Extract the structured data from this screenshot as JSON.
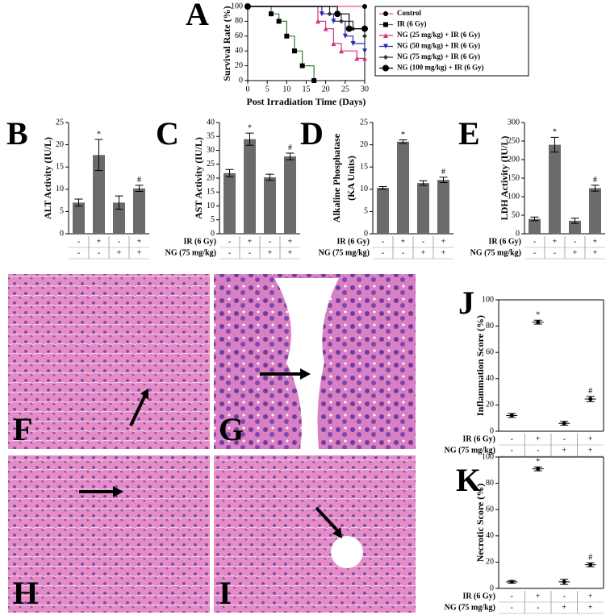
{
  "chart_data": [
    {
      "type": "line",
      "panel_label": "A",
      "xlabel": "Post Irradiation Time (Days)",
      "ylabel": "Survival Rate (%)",
      "xlim": [
        0,
        30
      ],
      "xticks": [
        0,
        5,
        10,
        15,
        20,
        25,
        30
      ],
      "ylim": [
        0,
        100
      ],
      "yticks": [
        0,
        20,
        40,
        60,
        80,
        100
      ],
      "series": [
        {
          "name": "Control",
          "color": "#e0559a",
          "marker": "circle",
          "x": [
            0,
            30
          ],
          "values": [
            100,
            100
          ]
        },
        {
          "name": "IR (6 Gy)",
          "color": "#2e7d32",
          "marker": "square",
          "x": [
            0,
            6,
            8,
            10,
            12,
            14,
            17
          ],
          "values": [
            100,
            90,
            80,
            60,
            40,
            20,
            0
          ]
        },
        {
          "name": "NG (25 mg/kg) + IR (6 Gy)",
          "color": "#d63384",
          "marker": "triangle-up",
          "x": [
            0,
            18,
            20,
            22,
            24,
            28,
            30
          ],
          "values": [
            100,
            80,
            70,
            50,
            40,
            30,
            30
          ]
        },
        {
          "name": "NG (50 mg/kg) + IR (6 Gy)",
          "color": "#2a2ab0",
          "marker": "triangle-down",
          "x": [
            0,
            19,
            22,
            25,
            27,
            30
          ],
          "values": [
            100,
            90,
            80,
            60,
            50,
            40
          ]
        },
        {
          "name": "NG (75 mg/kg) + IR (6 Gy)",
          "color": "#333333",
          "marker": "diamond",
          "x": [
            0,
            21,
            24,
            27,
            30
          ],
          "values": [
            100,
            90,
            80,
            70,
            60
          ]
        },
        {
          "name": "NG (100 mg/kg) + IR (6 Gy)",
          "color": "#000000",
          "marker": "big-circle",
          "x": [
            0,
            23,
            26,
            30
          ],
          "values": [
            100,
            90,
            70,
            70
          ]
        }
      ]
    },
    {
      "type": "bar",
      "panel_label": "B",
      "ylabel": "ALT Activity (IU/L)",
      "color": "#6b6b6b",
      "categories": [
        null,
        null,
        null,
        null
      ],
      "values": [
        7,
        17.7,
        7,
        10.2
      ],
      "errors": [
        0.8,
        3.5,
        1.5,
        0.7
      ],
      "markers": [
        null,
        "*",
        null,
        "#"
      ],
      "ylim": [
        0,
        25
      ],
      "yticks": [
        0,
        5,
        10,
        15,
        20,
        25
      ],
      "condition_rows": [
        {
          "label": null,
          "signs": [
            "-",
            "+",
            "-",
            "+"
          ]
        },
        {
          "label": null,
          "signs": [
            "-",
            "-",
            "+",
            "+"
          ]
        }
      ]
    },
    {
      "type": "bar",
      "panel_label": "C",
      "ylabel": "AST Activity (IU/L)",
      "color": "#6b6b6b",
      "categories": [
        null,
        null,
        null,
        null
      ],
      "values": [
        21.8,
        34,
        20.3,
        27.8
      ],
      "errors": [
        1.3,
        2.2,
        1.1,
        1.2
      ],
      "markers": [
        null,
        "*",
        null,
        "#"
      ],
      "ylim": [
        0,
        40
      ],
      "yticks": [
        0,
        5,
        10,
        15,
        20,
        25,
        30,
        35,
        40
      ],
      "condition_rows": [
        {
          "label": "IR (6 Gy)",
          "signs": [
            "-",
            "+",
            "-",
            "+"
          ]
        },
        {
          "label": "NG (75 mg/kg)",
          "signs": [
            "-",
            "-",
            "+",
            "+"
          ]
        }
      ]
    },
    {
      "type": "bar",
      "panel_label": "D",
      "ylabel": [
        "Alkaline Phosphatase",
        "(KA Units)"
      ],
      "color": "#6b6b6b",
      "categories": [
        null,
        null,
        null,
        null
      ],
      "values": [
        10.3,
        20.7,
        11.4,
        12.1
      ],
      "errors": [
        0.3,
        0.4,
        0.5,
        0.6
      ],
      "markers": [
        null,
        "*",
        null,
        "#"
      ],
      "ylim": [
        0,
        25
      ],
      "yticks": [
        0,
        5,
        10,
        15,
        20,
        25
      ],
      "condition_rows": [
        {
          "label": "IR (6 Gy)",
          "signs": [
            "-",
            "+",
            "-",
            "+"
          ]
        },
        {
          "label": "NG (75 mg/kg)",
          "signs": [
            "-",
            "-",
            "+",
            "+"
          ]
        }
      ]
    },
    {
      "type": "bar",
      "panel_label": "E",
      "ylabel": "LDH Activity (IU/L)",
      "color": "#6b6b6b",
      "categories": [
        null,
        null,
        null,
        null
      ],
      "values": [
        40,
        240,
        35,
        123
      ],
      "errors": [
        5,
        20,
        7,
        8
      ],
      "markers": [
        null,
        "*",
        null,
        "#"
      ],
      "ylim": [
        0,
        300
      ],
      "yticks": [
        0,
        50,
        100,
        150,
        200,
        250,
        300
      ],
      "condition_rows": [
        {
          "label": "IR (6 Gy)",
          "signs": [
            "-",
            "+",
            "-",
            "+"
          ]
        },
        {
          "label": "NG (75 mg/kg)",
          "signs": [
            "-",
            "-",
            "+",
            "+"
          ]
        }
      ]
    },
    {
      "type": "errorbar",
      "panel_label": "J",
      "ylabel": "Inflammation Score (%)",
      "categories": [
        null,
        null,
        null,
        null
      ],
      "values": [
        12,
        83,
        6,
        24.5
      ],
      "errors": [
        1.5,
        1.5,
        1.5,
        2
      ],
      "markers": [
        null,
        "*",
        null,
        "#"
      ],
      "ylim": [
        0,
        100
      ],
      "yticks": [
        0,
        20,
        40,
        60,
        80,
        100
      ],
      "condition_rows": [
        {
          "label": "IR (6 Gy)",
          "signs": [
            "-",
            "+",
            "-",
            "+"
          ]
        },
        {
          "label": "NG (75 mg/kg)",
          "signs": [
            "-",
            "-",
            "+",
            "+"
          ]
        }
      ]
    },
    {
      "type": "errorbar",
      "panel_label": "K",
      "ylabel": "Necrotic Score (%)",
      "categories": [
        null,
        null,
        null,
        null
      ],
      "values": [
        5,
        91,
        5,
        18
      ],
      "errors": [
        1,
        1.5,
        2,
        1.5
      ],
      "markers": [
        null,
        "*",
        null,
        "#"
      ],
      "ylim": [
        0,
        100
      ],
      "yticks": [
        0,
        20,
        40,
        60,
        80,
        100
      ],
      "condition_rows": [
        {
          "label": "IR (6 Gy)",
          "signs": [
            "-",
            "+",
            "-",
            "+"
          ]
        },
        {
          "label": "NG (75 mg/kg)",
          "signs": [
            "-",
            "-",
            "+",
            "+"
          ]
        }
      ]
    }
  ],
  "images": [
    {
      "label": "F"
    },
    {
      "label": "G"
    },
    {
      "label": "H"
    },
    {
      "label": "I"
    }
  ]
}
